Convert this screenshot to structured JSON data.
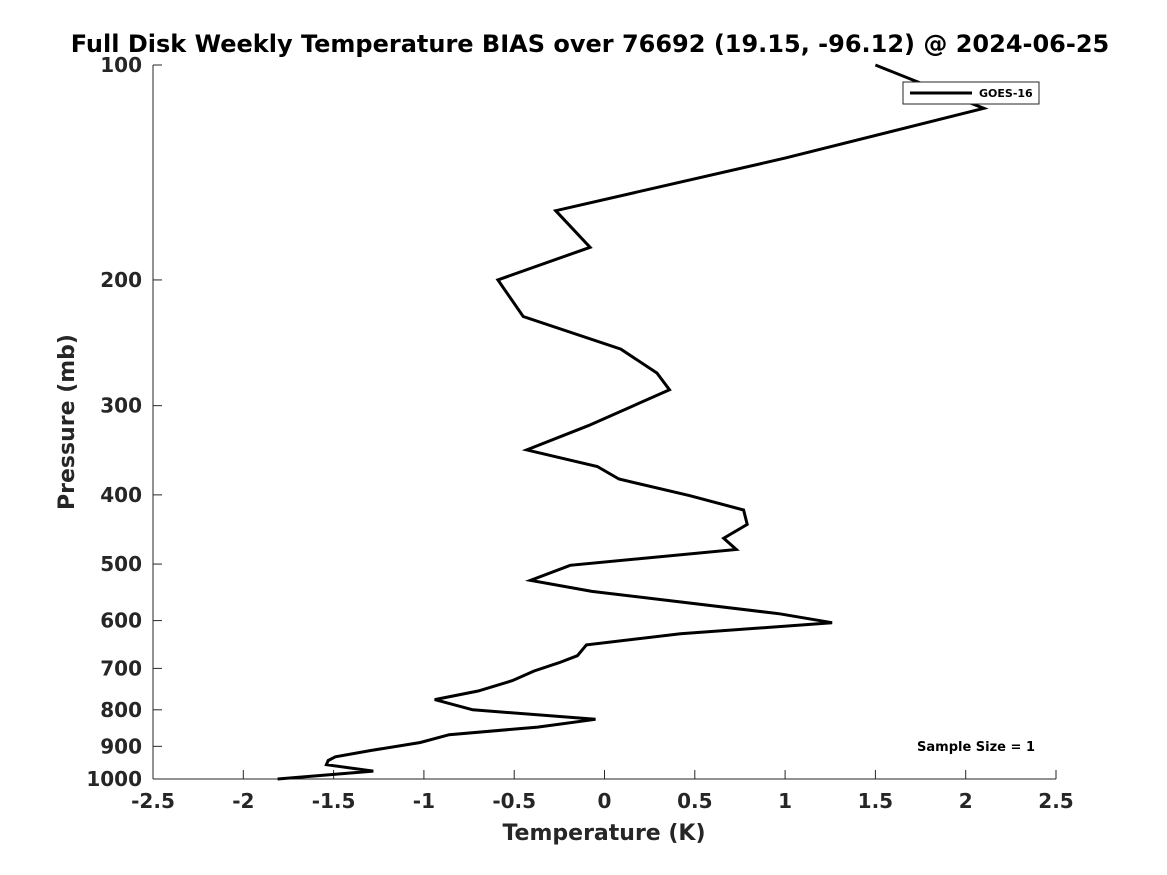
{
  "chart_data": {
    "type": "line",
    "title": "Full Disk Weekly Temperature BIAS over 76692 (19.15, -96.12) @ 2024-06-25",
    "xlabel": "Temperature (K)",
    "ylabel": "Pressure (mb)",
    "xlim": [
      -2.5,
      2.5
    ],
    "ylim": [
      100,
      1000
    ],
    "yscale": "log",
    "yreversed": true,
    "x_ticks": [
      -2.5,
      -2,
      -1.5,
      -1,
      -0.5,
      0,
      0.5,
      1,
      1.5,
      2,
      2.5
    ],
    "x_tick_labels": [
      "-2.5",
      "-2",
      "-1.5",
      "-1",
      "-0.5",
      "0",
      "0.5",
      "1",
      "1.5",
      "2",
      "2.5"
    ],
    "y_ticks": [
      100,
      200,
      300,
      400,
      500,
      600,
      700,
      800,
      900,
      1000
    ],
    "y_tick_labels": [
      "100",
      "200",
      "300",
      "400",
      "500",
      "600",
      "700",
      "800",
      "900",
      "1000"
    ],
    "grid": false,
    "legend_position": "top-right",
    "line_color": "#000000",
    "series": [
      {
        "name": "GOES-16",
        "points": [
          {
            "x": 1.5,
            "p": 100
          },
          {
            "x": 2.1,
            "p": 115
          },
          {
            "x": 1.0,
            "p": 135
          },
          {
            "x": -0.27,
            "p": 160
          },
          {
            "x": -0.08,
            "p": 180
          },
          {
            "x": -0.59,
            "p": 200
          },
          {
            "x": -0.45,
            "p": 225
          },
          {
            "x": 0.09,
            "p": 250
          },
          {
            "x": 0.29,
            "p": 270
          },
          {
            "x": 0.36,
            "p": 285
          },
          {
            "x": -0.09,
            "p": 320
          },
          {
            "x": -0.43,
            "p": 346
          },
          {
            "x": -0.04,
            "p": 365
          },
          {
            "x": 0.08,
            "p": 380
          },
          {
            "x": 0.47,
            "p": 401
          },
          {
            "x": 0.77,
            "p": 420
          },
          {
            "x": 0.79,
            "p": 440
          },
          {
            "x": 0.66,
            "p": 460
          },
          {
            "x": 0.73,
            "p": 477
          },
          {
            "x": -0.19,
            "p": 502
          },
          {
            "x": -0.41,
            "p": 527
          },
          {
            "x": -0.07,
            "p": 546
          },
          {
            "x": 0.97,
            "p": 587
          },
          {
            "x": 1.26,
            "p": 604
          },
          {
            "x": 0.42,
            "p": 626
          },
          {
            "x": -0.1,
            "p": 649
          },
          {
            "x": -0.15,
            "p": 672
          },
          {
            "x": -0.25,
            "p": 687
          },
          {
            "x": -0.39,
            "p": 706
          },
          {
            "x": -0.51,
            "p": 728
          },
          {
            "x": -0.7,
            "p": 753
          },
          {
            "x": -0.94,
            "p": 774
          },
          {
            "x": -0.73,
            "p": 800
          },
          {
            "x": -0.05,
            "p": 825
          },
          {
            "x": -0.37,
            "p": 846
          },
          {
            "x": -0.86,
            "p": 867
          },
          {
            "x": -1.02,
            "p": 889
          },
          {
            "x": -1.29,
            "p": 912
          },
          {
            "x": -1.49,
            "p": 931
          },
          {
            "x": -1.53,
            "p": 942
          },
          {
            "x": -1.54,
            "p": 955
          },
          {
            "x": -1.28,
            "p": 975
          },
          {
            "x": -1.81,
            "p": 1000
          }
        ]
      }
    ],
    "annotations": [
      "Sample Size = 1"
    ]
  }
}
